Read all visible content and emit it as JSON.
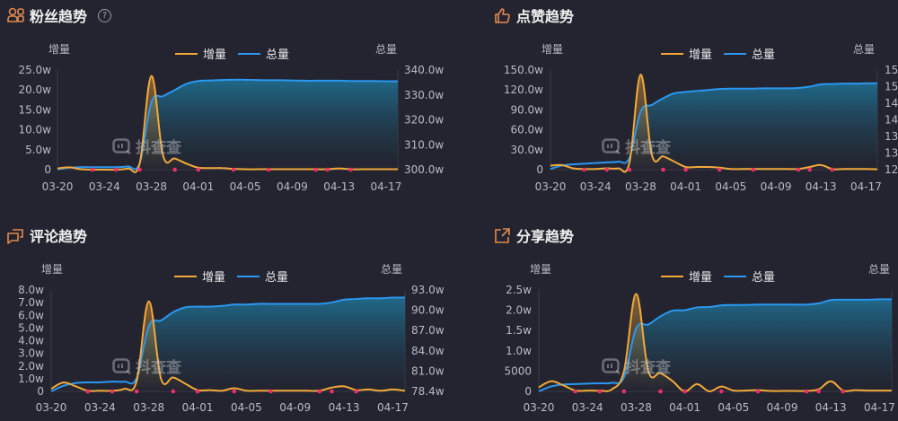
{
  "colors": {
    "background": "#23242f",
    "increment": "#f2a93b",
    "total": "#2b97f0",
    "marker": "#f0306a",
    "area_top": "#1f6c8e",
    "text": "#c8c9d0"
  },
  "watermark": "抖查查",
  "chart_data": [
    {
      "type": "line",
      "title": "粉丝趋势",
      "icon": "fans-icon",
      "help": "?",
      "left_axis_name": "增量",
      "right_axis_name": "总量",
      "legend": [
        "增量",
        "总量"
      ],
      "legend_position": "top-center",
      "grid": false,
      "x": [
        "03-20",
        "03-21",
        "03-22",
        "03-23",
        "03-24",
        "03-25",
        "03-26",
        "03-27",
        "03-28",
        "03-29",
        "03-30",
        "03-31",
        "04-01",
        "04-02",
        "04-03",
        "04-04",
        "04-05",
        "04-06",
        "04-07",
        "04-08",
        "04-09",
        "04-10",
        "04-11",
        "04-12",
        "04-13",
        "04-14",
        "04-15",
        "04-16",
        "04-17",
        "04-18"
      ],
      "x_ticks": [
        "03-20",
        "03-24",
        "03-28",
        "04-01",
        "04-05",
        "04-09",
        "04-13",
        "04-17"
      ],
      "left_ticks": [
        "0",
        "5.0w",
        "10.0w",
        "15.0w",
        "20.0w",
        "25.0w"
      ],
      "ylim_left": [
        0,
        25
      ],
      "right_ticks": [
        "300.0w",
        "310.0w",
        "320.0w",
        "330.0w",
        "340.0w"
      ],
      "ylim_right": [
        300,
        340
      ],
      "series": [
        {
          "name": "增量",
          "axis": "left",
          "values": [
            0.3,
            0.6,
            0.1,
            0,
            0,
            0,
            0.3,
            1.5,
            23.5,
            3.5,
            2.8,
            1.5,
            0.5,
            0.4,
            0.4,
            0.2,
            0.1,
            0.1,
            0.1,
            0.1,
            0.1,
            0.1,
            0.1,
            0.1,
            0.3,
            0.1,
            0.1,
            0.1,
            0.1,
            0.1
          ]
        },
        {
          "name": "总量",
          "axis": "right",
          "values": [
            300.2,
            300.8,
            301,
            301,
            301,
            301,
            301.3,
            302.5,
            327,
            329.5,
            332,
            334.5,
            335.6,
            335.8,
            336,
            336.1,
            336.1,
            336,
            335.9,
            335.9,
            335.8,
            335.7,
            335.7,
            335.7,
            335.7,
            335.6,
            335.6,
            335.6,
            335.5,
            335.5
          ]
        }
      ],
      "markers": [
        "03-23",
        "03-25",
        "03-27",
        "03-30",
        "04-01",
        "04-04",
        "04-07",
        "04-11",
        "04-12",
        "04-14"
      ]
    },
    {
      "type": "line",
      "title": "点赞趋势",
      "icon": "thumbs-up-icon",
      "left_axis_name": "增量",
      "right_axis_name": "总量",
      "legend": [
        "增量",
        "总量"
      ],
      "legend_position": "top-center",
      "grid": false,
      "x": [
        "03-20",
        "03-21",
        "03-22",
        "03-23",
        "03-24",
        "03-25",
        "03-26",
        "03-27",
        "03-28",
        "03-29",
        "03-30",
        "03-31",
        "04-01",
        "04-02",
        "04-03",
        "04-04",
        "04-05",
        "04-06",
        "04-07",
        "04-08",
        "04-09",
        "04-10",
        "04-11",
        "04-12",
        "04-13",
        "04-14",
        "04-15",
        "04-16",
        "04-17",
        "04-18"
      ],
      "x_ticks": [
        "03-20",
        "03-24",
        "03-28",
        "04-01",
        "04-05",
        "04-09",
        "04-13",
        "04-17"
      ],
      "left_ticks": [
        "0",
        "30.0w",
        "60.0w",
        "90.0w",
        "120.0w",
        "150.0w"
      ],
      "ylim_left": [
        0,
        150
      ],
      "right_ticks": [
        "12",
        "13",
        "13",
        "14",
        "14",
        "15",
        "15"
      ],
      "ylim_right": [
        125,
        155
      ],
      "series": [
        {
          "name": "增量",
          "axis": "left",
          "values": [
            6,
            7,
            2,
            1,
            1,
            2,
            2,
            10,
            143,
            22,
            20,
            12,
            4,
            4,
            4,
            3,
            1,
            1,
            1,
            1,
            1,
            1,
            1,
            4,
            7,
            1,
            1,
            1,
            1,
            0.5
          ]
        },
        {
          "name": "总量",
          "axis": "right",
          "values": [
            125.2,
            126.2,
            126.6,
            126.8,
            127,
            127.2,
            127.4,
            128.5,
            142.5,
            144.5,
            146.5,
            148,
            148.4,
            148.7,
            149,
            149.3,
            149.4,
            149.4,
            149.4,
            149.5,
            149.5,
            149.5,
            149.6,
            150,
            150.7,
            150.8,
            150.9,
            150.9,
            151,
            151
          ]
        }
      ],
      "markers": [
        "03-23",
        "03-25",
        "03-27",
        "03-30",
        "04-01",
        "04-04",
        "04-07",
        "04-11",
        "04-12",
        "04-14"
      ]
    },
    {
      "type": "line",
      "title": "评论趋势",
      "icon": "comment-icon",
      "left_axis_name": "增量",
      "right_axis_name": "总量",
      "legend": [
        "增量",
        "总量"
      ],
      "legend_position": "top-center",
      "grid": false,
      "x": [
        "03-20",
        "03-21",
        "03-22",
        "03-23",
        "03-24",
        "03-25",
        "03-26",
        "03-27",
        "03-28",
        "03-29",
        "03-30",
        "03-31",
        "04-01",
        "04-02",
        "04-03",
        "04-04",
        "04-05",
        "04-06",
        "04-07",
        "04-08",
        "04-09",
        "04-10",
        "04-11",
        "04-12",
        "04-13",
        "04-14",
        "04-15",
        "04-16",
        "04-17",
        "04-18"
      ],
      "x_ticks": [
        "03-20",
        "03-24",
        "03-28",
        "04-01",
        "04-05",
        "04-09",
        "04-13",
        "04-17"
      ],
      "left_ticks": [
        "0",
        "1.0w",
        "2.0w",
        "3.0w",
        "4.0w",
        "5.0w",
        "6.0w",
        "7.0w",
        "8.0w"
      ],
      "ylim_left": [
        0,
        8
      ],
      "right_ticks": [
        "78.4w",
        "81.0w",
        "84.0w",
        "87.0w",
        "90.0w",
        "93.0w"
      ],
      "ylim_right": [
        78.4,
        93
      ],
      "series": [
        {
          "name": "增量",
          "axis": "left",
          "values": [
            0.2,
            0.7,
            0.4,
            0.05,
            0.05,
            0.05,
            0.2,
            0.8,
            7.1,
            1.0,
            1.1,
            0.6,
            0.1,
            0.1,
            0.05,
            0.25,
            0.05,
            0.05,
            0.05,
            0.05,
            0.05,
            0.05,
            0.05,
            0.3,
            0.4,
            0.1,
            0.15,
            0.05,
            0.15,
            0.05
          ]
        },
        {
          "name": "总量",
          "axis": "right",
          "values": [
            78.4,
            79.2,
            79.6,
            79.7,
            79.7,
            79.8,
            79.8,
            80.3,
            87.8,
            88.6,
            89.8,
            90.5,
            90.6,
            90.6,
            90.7,
            90.9,
            90.9,
            91,
            91,
            91,
            91,
            91,
            91,
            91.2,
            91.6,
            91.7,
            91.8,
            91.8,
            91.9,
            91.9
          ]
        }
      ],
      "markers": [
        "03-23",
        "03-25",
        "03-27",
        "03-30",
        "04-01",
        "04-04",
        "04-07",
        "04-11",
        "04-12",
        "04-14"
      ]
    },
    {
      "type": "line",
      "title": "分享趋势",
      "icon": "share-icon",
      "left_axis_name": "增量",
      "right_axis_name": "总量",
      "legend": [
        "增量",
        "总量"
      ],
      "legend_position": "top-center",
      "grid": false,
      "x": [
        "03-20",
        "03-21",
        "03-22",
        "03-23",
        "03-24",
        "03-25",
        "03-26",
        "03-27",
        "03-28",
        "03-29",
        "03-30",
        "03-31",
        "04-01",
        "04-02",
        "04-03",
        "04-04",
        "04-05",
        "04-06",
        "04-07",
        "04-08",
        "04-09",
        "04-10",
        "04-11",
        "04-12",
        "04-13",
        "04-14",
        "04-15",
        "04-16",
        "04-17",
        "04-18"
      ],
      "x_ticks": [
        "03-20",
        "03-24",
        "03-28",
        "04-01",
        "04-05",
        "04-09",
        "04-13",
        "04-17"
      ],
      "left_ticks": [
        "0",
        "5000",
        "1.0w",
        "1.5w",
        "2.0w",
        "2.5w"
      ],
      "ylim_left": [
        0,
        2.5
      ],
      "right_ticks": [],
      "ylim_right": [
        0,
        2.5
      ],
      "series": [
        {
          "name": "增量",
          "axis": "left",
          "values": [
            0.1,
            0.25,
            0.15,
            0.02,
            0.02,
            0.02,
            0.05,
            0.5,
            2.4,
            0.5,
            0.45,
            0.25,
            0,
            0.18,
            0,
            0.12,
            0.02,
            0.02,
            0.03,
            0.01,
            0.01,
            0.01,
            0.01,
            0.05,
            0.25,
            0.02,
            0.03,
            0.02,
            0.02,
            0.02
          ]
        },
        {
          "name": "总量",
          "axis": "right",
          "values": [
            0,
            0.12,
            0.17,
            0.18,
            0.19,
            0.2,
            0.21,
            0.35,
            1.55,
            1.65,
            1.85,
            1.99,
            2.0,
            2.07,
            2.08,
            2.12,
            2.13,
            2.13,
            2.14,
            2.14,
            2.14,
            2.14,
            2.14,
            2.17,
            2.25,
            2.26,
            2.26,
            2.26,
            2.27,
            2.27
          ]
        }
      ],
      "markers": [
        "03-23",
        "03-25",
        "03-27",
        "03-30",
        "04-01",
        "04-04",
        "04-07",
        "04-11",
        "04-12",
        "04-14"
      ]
    }
  ]
}
